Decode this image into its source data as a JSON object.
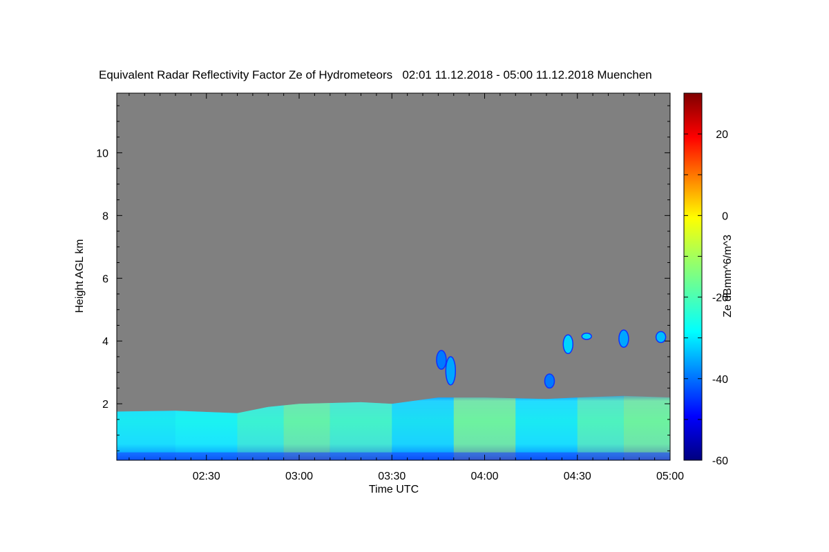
{
  "chart_data": {
    "type": "heatmap",
    "title": "Equivalent Radar Reflectivity Factor Ze of Hydrometeors   02:01 11.12.2018 - 05:00 11.12.2018 Muenchen",
    "xlabel": "Time UTC",
    "ylabel": "Height AGL km",
    "xlim": [
      "02:01",
      "05:00"
    ],
    "ylim": [
      0.2,
      11.9
    ],
    "x_ticks": [
      "02:30",
      "03:00",
      "03:30",
      "04:00",
      "04:30",
      "05:00"
    ],
    "y_ticks": [
      2,
      4,
      6,
      8,
      10
    ],
    "missing_color": "#808080",
    "colorbar": {
      "label": "Ze dBmm^6/m^3",
      "range": [
        -60,
        30
      ],
      "ticks": [
        -60,
        -40,
        -20,
        0,
        20
      ],
      "colormap": "jet"
    },
    "boundary_layer_top_km": [
      {
        "time": "02:01",
        "height": 1.75
      },
      {
        "time": "02:20",
        "height": 1.78
      },
      {
        "time": "02:40",
        "height": 1.7
      },
      {
        "time": "02:50",
        "height": 1.9
      },
      {
        "time": "03:00",
        "height": 2.0
      },
      {
        "time": "03:20",
        "height": 2.05
      },
      {
        "time": "03:30",
        "height": 2.0
      },
      {
        "time": "03:45",
        "height": 2.2
      },
      {
        "time": "04:00",
        "height": 2.2
      },
      {
        "time": "04:20",
        "height": 2.15
      },
      {
        "time": "04:30",
        "height": 2.2
      },
      {
        "time": "04:45",
        "height": 2.25
      },
      {
        "time": "05:00",
        "height": 2.2
      }
    ],
    "columns_mean_ze": [
      {
        "time": "02:10",
        "ze": -28
      },
      {
        "time": "02:30",
        "ze": -26
      },
      {
        "time": "02:50",
        "ze": -20
      },
      {
        "time": "03:00",
        "ze": -12
      },
      {
        "time": "03:20",
        "ze": -18
      },
      {
        "time": "03:40",
        "ze": -30
      },
      {
        "time": "04:00",
        "ze": -10
      },
      {
        "time": "04:20",
        "ze": -28
      },
      {
        "time": "04:40",
        "ze": -16
      },
      {
        "time": "04:50",
        "ze": -10
      }
    ],
    "elevated_echoes": [
      {
        "time": "03:46",
        "height_bottom": 3.1,
        "height_top": 3.7,
        "ze": -38
      },
      {
        "time": "03:49",
        "height_bottom": 2.6,
        "height_top": 3.5,
        "ze": -34
      },
      {
        "time": "04:21",
        "height_bottom": 2.5,
        "height_top": 2.95,
        "ze": -38
      },
      {
        "time": "04:27",
        "height_bottom": 3.6,
        "height_top": 4.2,
        "ze": -30
      },
      {
        "time": "04:33",
        "height_bottom": 4.05,
        "height_top": 4.25,
        "ze": -30
      },
      {
        "time": "04:45",
        "height_bottom": 3.8,
        "height_top": 4.35,
        "ze": -34
      },
      {
        "time": "04:57",
        "height_bottom": 3.95,
        "height_top": 4.3,
        "ze": -32
      }
    ]
  }
}
